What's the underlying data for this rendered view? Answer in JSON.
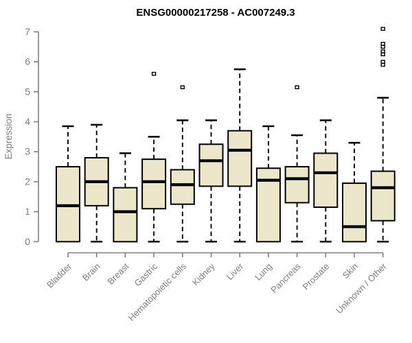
{
  "title": "ENSG00000217258 - AC007249.3",
  "colors": {
    "background": "#ffffff",
    "box_fill": "#ece6cb",
    "box_border": "#000000",
    "median": "#000000",
    "axis": "#7e7e7e",
    "tick_label": "#7e7e7e",
    "title_color": "#000000",
    "outlier_fill": "#ffffff"
  },
  "chart_data": {
    "type": "boxplot",
    "title": "ENSG00000217258 - AC007249.3",
    "xlabel": "",
    "ylabel": "Expression",
    "ylim": [
      0,
      7
    ],
    "yticks": [
      0,
      1,
      2,
      3,
      4,
      5,
      6,
      7
    ],
    "grid": false,
    "legend": "none",
    "categories": [
      "Bladder",
      "Brain",
      "Breast",
      "Gastric",
      "Hematopoietic cells",
      "Kidney",
      "Liver",
      "Lung",
      "Pancreas",
      "Prostate",
      "Skin",
      "Unknown / Other"
    ],
    "series": [
      {
        "name": "Bladder",
        "whisker_low": 0,
        "q1": 0,
        "median": 1.2,
        "q3": 2.5,
        "whisker_high": 3.85,
        "outliers": []
      },
      {
        "name": "Brain",
        "whisker_low": 0,
        "q1": 1.2,
        "median": 2.0,
        "q3": 2.8,
        "whisker_high": 3.9,
        "outliers": []
      },
      {
        "name": "Breast",
        "whisker_low": 0,
        "q1": 0,
        "median": 1.0,
        "q3": 1.8,
        "whisker_high": 2.95,
        "outliers": []
      },
      {
        "name": "Gastric",
        "whisker_low": 0,
        "q1": 1.1,
        "median": 2.0,
        "q3": 2.75,
        "whisker_high": 3.5,
        "outliers": [
          5.6
        ]
      },
      {
        "name": "Hematopoietic cells",
        "whisker_low": 0,
        "q1": 1.25,
        "median": 1.9,
        "q3": 2.4,
        "whisker_high": 4.05,
        "outliers": [
          5.15
        ]
      },
      {
        "name": "Kidney",
        "whisker_low": 0,
        "q1": 1.85,
        "median": 2.7,
        "q3": 3.25,
        "whisker_high": 4.05,
        "outliers": []
      },
      {
        "name": "Liver",
        "whisker_low": 0,
        "q1": 1.85,
        "median": 3.05,
        "q3": 3.7,
        "whisker_high": 5.75,
        "outliers": []
      },
      {
        "name": "Lung",
        "whisker_low": 0,
        "q1": 0,
        "median": 2.05,
        "q3": 2.45,
        "whisker_high": 3.85,
        "outliers": []
      },
      {
        "name": "Pancreas",
        "whisker_low": 0,
        "q1": 1.3,
        "median": 2.1,
        "q3": 2.5,
        "whisker_high": 3.55,
        "outliers": [
          5.15
        ]
      },
      {
        "name": "Prostate",
        "whisker_low": 0,
        "q1": 1.15,
        "median": 2.3,
        "q3": 2.95,
        "whisker_high": 4.05,
        "outliers": []
      },
      {
        "name": "Skin",
        "whisker_low": 0,
        "q1": 0,
        "median": 0.5,
        "q3": 1.95,
        "whisker_high": 3.3,
        "outliers": []
      },
      {
        "name": "Unknown / Other",
        "whisker_low": 0,
        "q1": 0.7,
        "median": 1.8,
        "q3": 2.35,
        "whisker_high": 4.8,
        "outliers": [
          7.1,
          6.6,
          6.5,
          6.35,
          6.25,
          6.0,
          5.9
        ]
      }
    ]
  }
}
